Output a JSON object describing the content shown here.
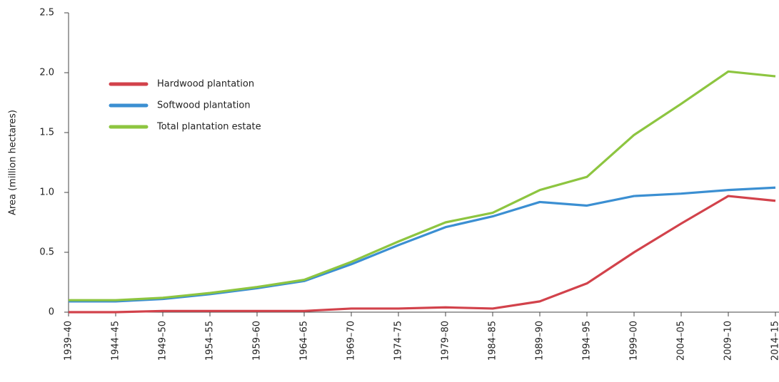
{
  "chart_data": {
    "type": "line",
    "y_label": "Area (million hectares)",
    "categories": [
      "1939–40",
      "1944–45",
      "1949–50",
      "1954–55",
      "1959–60",
      "1964–65",
      "1969–70",
      "1974–75",
      "1979–80",
      "1984–85",
      "1989–90",
      "1994–95",
      "1999–00",
      "2004–05",
      "2009–10",
      "2014–15"
    ],
    "series": [
      {
        "name": "Hardwood plantation",
        "color": "#d2424b",
        "values": [
          0.0,
          0.0,
          0.01,
          0.01,
          0.01,
          0.01,
          0.03,
          0.03,
          0.04,
          0.03,
          0.09,
          0.24,
          0.5,
          0.74,
          0.97,
          0.93
        ]
      },
      {
        "name": "Softwood plantation",
        "color": "#3b8fd2",
        "values": [
          0.09,
          0.09,
          0.11,
          0.15,
          0.2,
          0.26,
          0.4,
          0.56,
          0.71,
          0.8,
          0.92,
          0.89,
          0.97,
          0.99,
          1.02,
          1.04
        ]
      },
      {
        "name": "Total plantation estate",
        "color": "#8dc540",
        "values": [
          0.1,
          0.1,
          0.12,
          0.16,
          0.21,
          0.27,
          0.42,
          0.59,
          0.75,
          0.83,
          1.02,
          1.13,
          1.48,
          1.74,
          2.01,
          1.97
        ]
      }
    ],
    "ylim": [
      0,
      2.5
    ],
    "yticks": [
      0,
      0.5,
      {
        "value": 1,
        "label": "1.0"
      },
      1.5,
      {
        "value": 2,
        "label": "2.0"
      },
      2.5
    ],
    "legend": "upper left",
    "grid": false
  }
}
